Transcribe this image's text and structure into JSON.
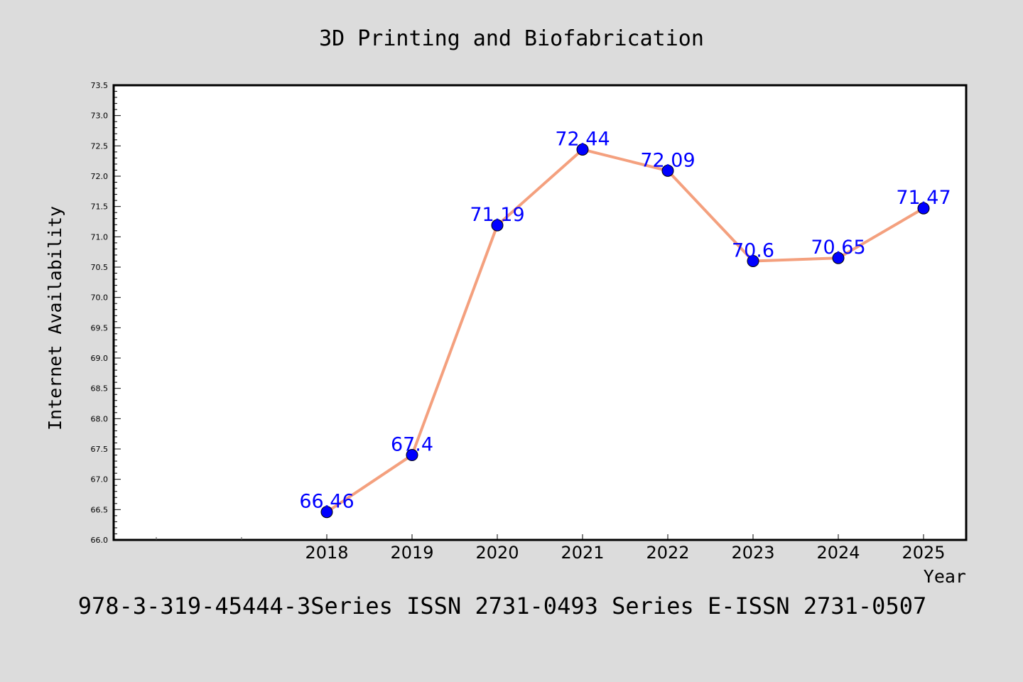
{
  "chart_data": {
    "type": "line",
    "title": "3D Printing and Biofabrication",
    "xlabel": "Year",
    "ylabel": "Internet Availability",
    "footer": "978-3-319-45444-3Series ISSN 2731-0493 Series E-ISSN 2731-0507",
    "x": [
      "2018",
      "2019",
      "2020",
      "2021",
      "2022",
      "2023",
      "2024",
      "2025"
    ],
    "series": [
      {
        "values": [
          66.46,
          67.4,
          71.19,
          72.44,
          72.09,
          70.6,
          70.65,
          71.47
        ],
        "labels": [
          "66.46",
          "67.4",
          "71.19",
          "72.44",
          "72.09",
          "70.6",
          "70.65",
          "71.47"
        ],
        "line_color": "#f4a07e",
        "marker_color": "#0000ff"
      }
    ],
    "yticks": [
      "66.0",
      "66.5",
      "67.0",
      "67.5",
      "68.0",
      "68.5",
      "69.0",
      "69.5",
      "70.0",
      "70.5",
      "71.0",
      "71.5",
      "72.0",
      "72.5",
      "73.0",
      "73.5"
    ],
    "ylim": [
      66.0,
      73.5
    ],
    "grid": false,
    "legend": "none",
    "background": "#dcdcdc",
    "plot_background": "#ffffff"
  }
}
